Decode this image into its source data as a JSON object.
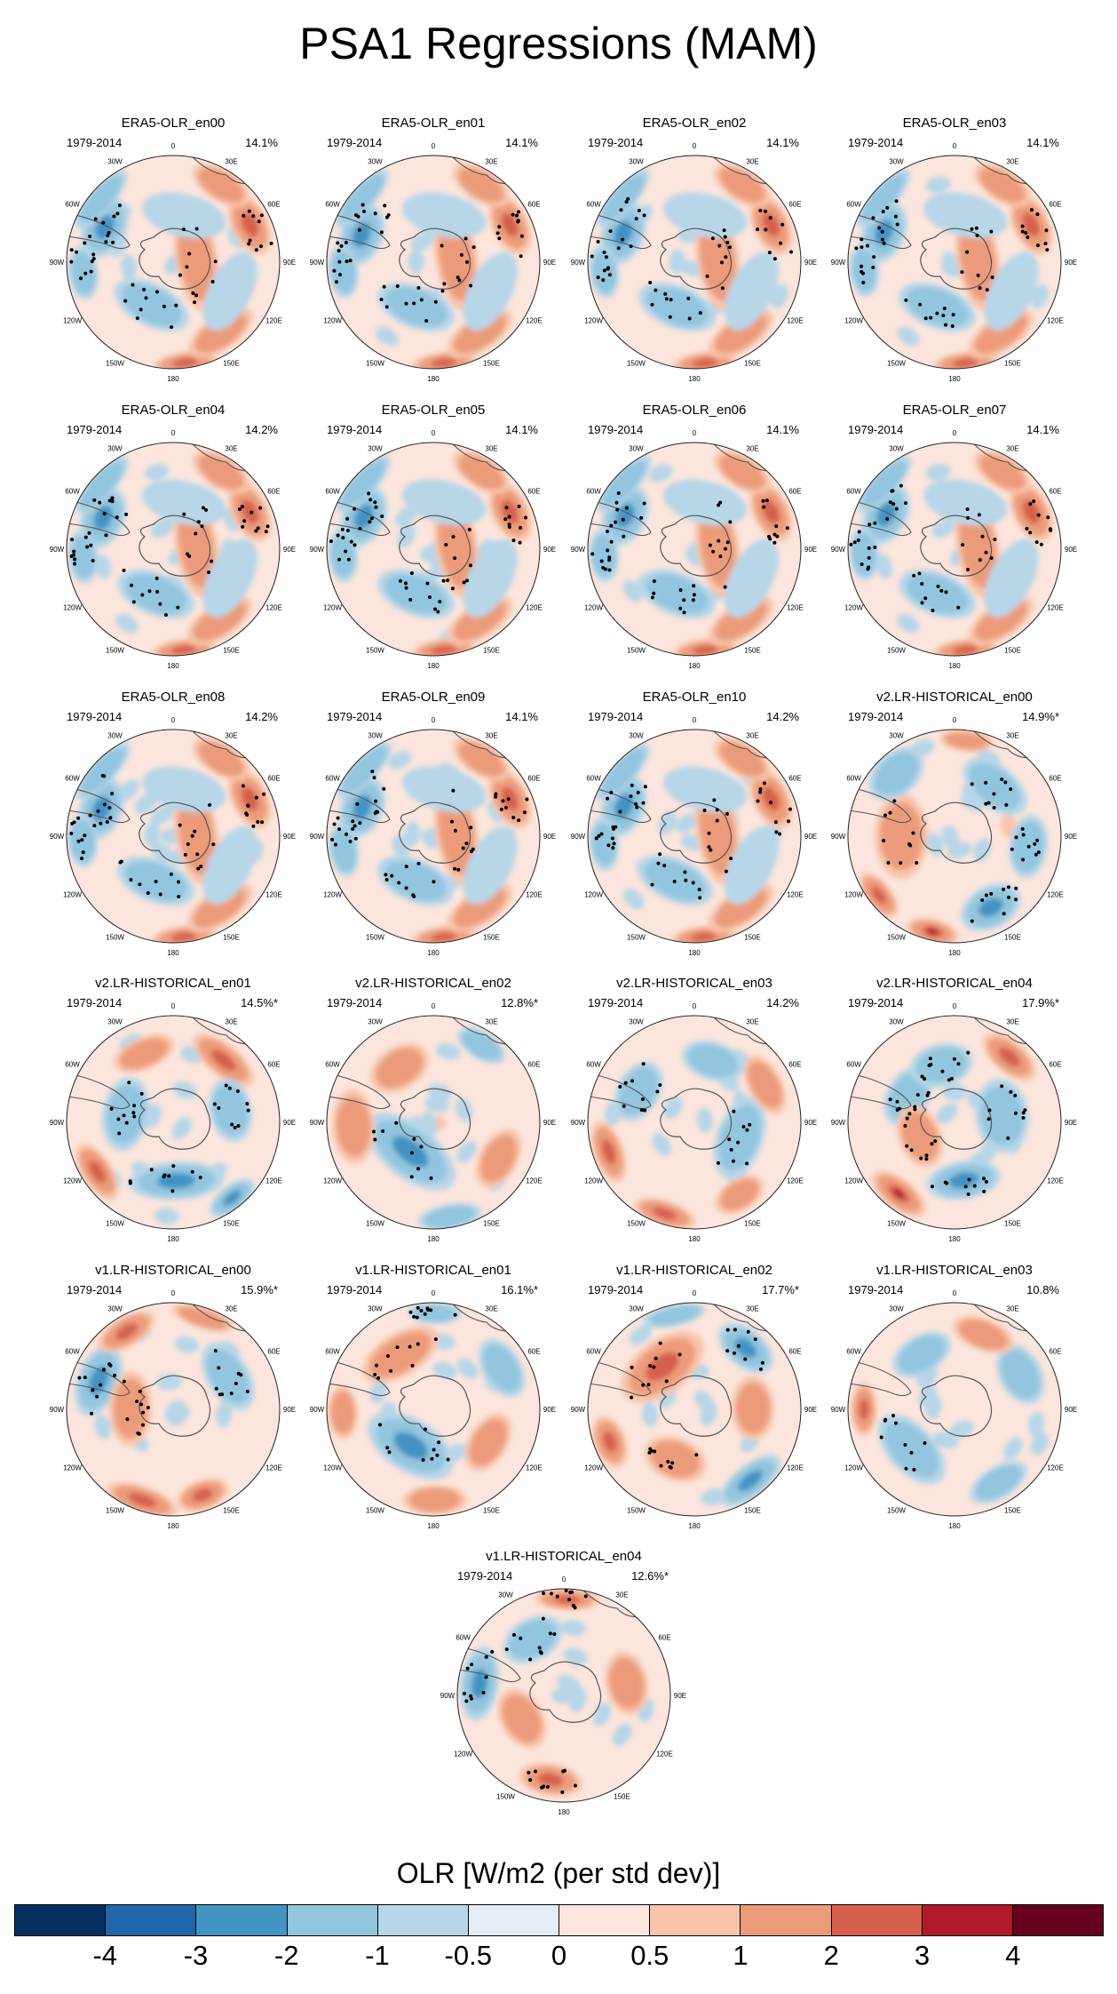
{
  "title": "PSA1 Regressions (MAM)",
  "chart_data": {
    "type": "polar-map-grid",
    "title": "PSA1 Regressions (MAM)",
    "variable": "OLR [W/m2 (per std dev)]",
    "period": "1979-2014",
    "projection": "South Polar Stereographic",
    "longitude_labels": [
      "0",
      "30E",
      "60E",
      "90E",
      "120E",
      "150E",
      "180",
      "150W",
      "120W",
      "90W",
      "60W",
      "30W"
    ],
    "colorbar": {
      "label": "OLR [W/m2 (per std dev)]",
      "ticks": [
        "-4",
        "-3",
        "-2",
        "-1",
        "-0.5",
        "0",
        "0.5",
        "1",
        "2",
        "3",
        "4"
      ],
      "colors": [
        "#053061",
        "#2166ac",
        "#4393c3",
        "#92c5de",
        "#b7d6e8",
        "#e4edf3",
        "#fbe5dc",
        "#f8c4aa",
        "#ec9b7a",
        "#d6604d",
        "#b2182b",
        "#67001f"
      ]
    },
    "panels": [
      {
        "name": "ERA5-OLR_en00",
        "period": "1979-2014",
        "variance": "14.1%",
        "pattern": "era5"
      },
      {
        "name": "ERA5-OLR_en01",
        "period": "1979-2014",
        "variance": "14.1%",
        "pattern": "era5"
      },
      {
        "name": "ERA5-OLR_en02",
        "period": "1979-2014",
        "variance": "14.1%",
        "pattern": "era5"
      },
      {
        "name": "ERA5-OLR_en03",
        "period": "1979-2014",
        "variance": "14.1%",
        "pattern": "era5"
      },
      {
        "name": "ERA5-OLR_en04",
        "period": "1979-2014",
        "variance": "14.2%",
        "pattern": "era5"
      },
      {
        "name": "ERA5-OLR_en05",
        "period": "1979-2014",
        "variance": "14.1%",
        "pattern": "era5"
      },
      {
        "name": "ERA5-OLR_en06",
        "period": "1979-2014",
        "variance": "14.1%",
        "pattern": "era5"
      },
      {
        "name": "ERA5-OLR_en07",
        "period": "1979-2014",
        "variance": "14.1%",
        "pattern": "era5"
      },
      {
        "name": "ERA5-OLR_en08",
        "period": "1979-2014",
        "variance": "14.2%",
        "pattern": "era5"
      },
      {
        "name": "ERA5-OLR_en09",
        "period": "1979-2014",
        "variance": "14.1%",
        "pattern": "era5"
      },
      {
        "name": "ERA5-OLR_en10",
        "period": "1979-2014",
        "variance": "14.2%",
        "pattern": "era5"
      },
      {
        "name": "v2.LR-HISTORICAL_en00",
        "period": "1979-2014",
        "variance": "14.9%*",
        "pattern": "v2a"
      },
      {
        "name": "v2.LR-HISTORICAL_en01",
        "period": "1979-2014",
        "variance": "14.5%*",
        "pattern": "v2b"
      },
      {
        "name": "v2.LR-HISTORICAL_en02",
        "period": "1979-2014",
        "variance": "12.8%*",
        "pattern": "v2c"
      },
      {
        "name": "v2.LR-HISTORICAL_en03",
        "period": "1979-2014",
        "variance": "14.2%",
        "pattern": "v2d"
      },
      {
        "name": "v2.LR-HISTORICAL_en04",
        "period": "1979-2014",
        "variance": "17.9%*",
        "pattern": "v2e"
      },
      {
        "name": "v1.LR-HISTORICAL_en00",
        "period": "1979-2014",
        "variance": "15.9%*",
        "pattern": "v1a"
      },
      {
        "name": "v1.LR-HISTORICAL_en01",
        "period": "1979-2014",
        "variance": "16.1%*",
        "pattern": "v1b"
      },
      {
        "name": "v1.LR-HISTORICAL_en02",
        "period": "1979-2014",
        "variance": "17.7%*",
        "pattern": "v1c"
      },
      {
        "name": "v1.LR-HISTORICAL_en03",
        "period": "1979-2014",
        "variance": "10.8%",
        "pattern": "v1d"
      },
      {
        "name": "v1.LR-HISTORICAL_en04",
        "period": "1979-2014",
        "variance": "12.6%*",
        "pattern": "v1e"
      }
    ]
  }
}
